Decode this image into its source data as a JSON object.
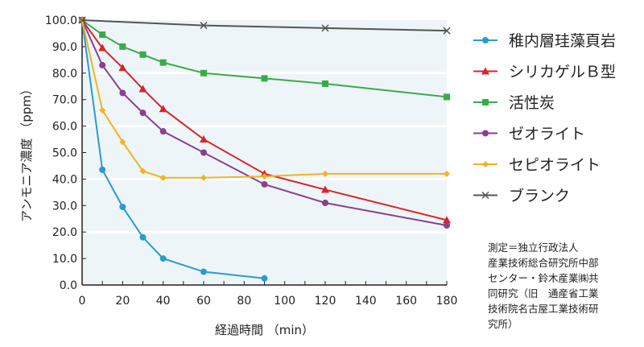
{
  "chart_data": {
    "type": "line",
    "xlabel": "経過時間 （min）",
    "ylabel": "アンモニア濃度 （ppm）",
    "xlim": [
      0,
      180
    ],
    "ylim": [
      0,
      100
    ],
    "xticks": [
      0,
      20,
      40,
      60,
      80,
      100,
      120,
      140,
      160,
      180
    ],
    "xtick_labels": [
      "0",
      "20",
      "40",
      "60",
      "80",
      "100",
      "120",
      "140",
      "160",
      "180"
    ],
    "yticks": [
      0,
      10,
      20,
      30,
      40,
      50,
      60,
      70,
      80,
      90,
      100
    ],
    "ytick_labels": [
      "0.0",
      "10.0",
      "20.0",
      "30.0",
      "40.0",
      "50.0",
      "60.0",
      "70.0",
      "80.0",
      "90.0",
      "100.0"
    ],
    "grid": "horizontal every 20",
    "legend_position": "right",
    "series": [
      {
        "name": "稚内層珪藻頁岩",
        "color": "#2a9ad0",
        "marker": "circle",
        "x": [
          0,
          10,
          20,
          30,
          40,
          60,
          90
        ],
        "y": [
          100,
          43.5,
          29.5,
          18,
          10,
          5,
          2.5
        ]
      },
      {
        "name": "シリカゲルＢ型",
        "color": "#d9252a",
        "marker": "triangle",
        "x": [
          0,
          10,
          20,
          30,
          40,
          60,
          90,
          120,
          180
        ],
        "y": [
          100,
          89.5,
          82,
          74,
          66.5,
          55,
          42,
          36,
          24.5
        ]
      },
      {
        "name": "活性炭",
        "color": "#3aaa4a",
        "marker": "square",
        "x": [
          0,
          10,
          20,
          30,
          40,
          60,
          90,
          120,
          180
        ],
        "y": [
          100,
          94.5,
          90,
          87,
          84,
          80,
          78,
          76,
          71
        ]
      },
      {
        "name": "ゼオライト",
        "color": "#8a3f8f",
        "marker": "circle",
        "x": [
          0,
          10,
          20,
          30,
          40,
          60,
          90,
          120,
          180
        ],
        "y": [
          100,
          83,
          72.5,
          65,
          58,
          50,
          38,
          31,
          22.5
        ]
      },
      {
        "name": "セピオライト",
        "color": "#f0b323",
        "marker": "diamond",
        "x": [
          0,
          10,
          20,
          30,
          40,
          60,
          90,
          120,
          180
        ],
        "y": [
          100,
          66,
          54,
          43,
          40.5,
          40.5,
          41,
          42,
          42
        ]
      },
      {
        "name": "ブランク",
        "color": "#555555",
        "marker": "x",
        "x": [
          0,
          60,
          120,
          180
        ],
        "y": [
          100,
          98,
          97,
          96
        ]
      }
    ]
  },
  "note_lines": [
    "測定＝独立行政法人",
    "産業技術総合研究所中部",
    "センター・鈴木産業㈱共",
    "同研究（旧　通産省工業",
    "技術院名古屋工業技術研",
    "究所）"
  ]
}
